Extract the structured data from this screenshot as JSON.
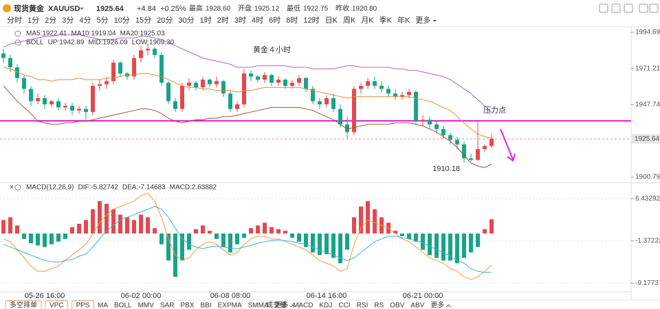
{
  "header": {
    "symbol": "现货黄金",
    "code": "XAUUSD",
    "price": "1925.64",
    "change": "+4.84",
    "change_pct": "+0.25%",
    "stats": [
      {
        "label": "最高",
        "value": "1928.60"
      },
      {
        "label": "开盘",
        "value": "1925.12"
      },
      {
        "label": "最低",
        "value": "1922.75"
      },
      {
        "label": "昨收",
        "value": "1920.80"
      }
    ]
  },
  "timeframes": [
    "分时",
    "1分",
    "2分",
    "3分",
    "4分",
    "5分",
    "10分",
    "15分",
    "20分",
    "30分",
    "1时",
    "2时",
    "3时",
    "4时",
    "6时",
    "8时",
    "12时",
    "日K",
    "周K",
    "月K",
    "季K",
    "年K",
    "更多"
  ],
  "bottom": {
    "tabs": [
      "多空排单",
      "VPC",
      "PPS"
    ],
    "main_indicators": [
      "MA",
      "BOLL",
      "MMV",
      "SAR",
      "PBX",
      "BBI",
      "EXPMA",
      "SMMA",
      "更多"
    ],
    "sub_indicators": [
      "成交量",
      "MACD",
      "KDJ",
      "CCI",
      "RSI",
      "RS",
      "OBV",
      "ABV",
      "更多"
    ]
  },
  "chart_data": [
    {
      "type": "candlestick",
      "title": "黄金４小时",
      "annotation": "压力点",
      "ma_legend": [
        {
          "text": "MA5:1922.41",
          "color": "#f08a24"
        },
        {
          "text": "MA10:1919.04",
          "color": "#2a8fd8"
        },
        {
          "text": "MA20:1925.03",
          "color": "#d0459b"
        }
      ],
      "indicator": "BOLL",
      "categories": [
        null,
        null,
        null,
        null,
        null,
        null,
        "05-26 16:00",
        null,
        null,
        null,
        null,
        null,
        null,
        null,
        null,
        null,
        null,
        null,
        null,
        null,
        "06-02 00:00",
        null,
        null,
        null,
        null,
        null,
        null,
        null,
        null,
        null,
        null,
        null,
        null,
        "06-08 08:00",
        null,
        null,
        null,
        null,
        null,
        null,
        null,
        null,
        null,
        null,
        null,
        null,
        null,
        "06-14 16:00",
        null,
        null,
        null,
        null,
        null,
        null,
        null,
        null,
        null,
        null,
        null,
        null,
        null,
        "06-21 00:00",
        null,
        null,
        null,
        null,
        null,
        null,
        null,
        null,
        null,
        null
      ],
      "open": [
        1981,
        1978,
        1972,
        1965,
        1958,
        1950,
        1952,
        1948,
        1950,
        1946,
        1947,
        1944,
        1945,
        1943,
        1960,
        1961,
        1963,
        1975,
        1968,
        1966,
        1978,
        1983,
        1984,
        1980,
        1962,
        1950,
        1945,
        1960,
        1962,
        1959,
        1964,
        1961,
        1963,
        1955,
        1945,
        1948,
        1968,
        1966,
        1964,
        1967,
        1962,
        1964,
        1960,
        1962,
        1965,
        1958,
        1950,
        1948,
        1952,
        1945,
        1935,
        1930,
        1958,
        1960,
        1963,
        1960,
        1958,
        1955,
        1953,
        1954,
        1956,
        1937,
        1938,
        1935,
        1932,
        1928,
        1925,
        1922,
        1913,
        1912,
        1919,
        1921
      ],
      "high": [
        1984,
        1980,
        1974,
        1967,
        1960,
        1955,
        1954,
        1951,
        1952,
        1949,
        1949,
        1947,
        1947,
        1962,
        1964,
        1966,
        1977,
        1976,
        1969,
        1980,
        1986,
        1987,
        1985,
        1982,
        1963,
        1952,
        1962,
        1965,
        1963,
        1966,
        1965,
        1966,
        1964,
        1957,
        1950,
        1971,
        1970,
        1967,
        1969,
        1968,
        1966,
        1965,
        1964,
        1967,
        1966,
        1960,
        1952,
        1954,
        1955,
        1948,
        1940,
        1960,
        1962,
        1965,
        1966,
        1963,
        1960,
        1958,
        1956,
        1958,
        1957,
        1941,
        1940,
        1937,
        1934,
        1930,
        1927,
        1924,
        1916,
        1938,
        1922,
        1928.6
      ],
      "low": [
        1975,
        1969,
        1962,
        1955,
        1947,
        1948,
        1945,
        1946,
        1944,
        1944,
        1941,
        1942,
        1938,
        1941,
        1957,
        1958,
        1961,
        1966,
        1964,
        1964,
        1975,
        1980,
        1978,
        1960,
        1948,
        1943,
        1943,
        1957,
        1957,
        1957,
        1959,
        1959,
        1953,
        1943,
        1943,
        1946,
        1963,
        1962,
        1962,
        1960,
        1960,
        1958,
        1958,
        1960,
        1956,
        1948,
        1945,
        1946,
        1943,
        1933,
        1926,
        1928,
        1955,
        1958,
        1958,
        1956,
        1953,
        1951,
        1951,
        1952,
        1935,
        1934,
        1932,
        1929,
        1926,
        1922,
        1919,
        1910.18,
        1911,
        1911,
        1917,
        1920
      ],
      "close": [
        1978,
        1972,
        1965,
        1958,
        1950,
        1952,
        1948,
        1950,
        1946,
        1947,
        1944,
        1945,
        1943,
        1960,
        1961,
        1963,
        1975,
        1968,
        1966,
        1978,
        1983,
        1984,
        1980,
        1962,
        1950,
        1945,
        1960,
        1962,
        1959,
        1964,
        1961,
        1963,
        1955,
        1945,
        1948,
        1968,
        1966,
        1964,
        1967,
        1962,
        1964,
        1960,
        1962,
        1965,
        1958,
        1950,
        1948,
        1952,
        1945,
        1935,
        1930,
        1958,
        1960,
        1963,
        1960,
        1958,
        1955,
        1953,
        1954,
        1956,
        1937,
        1938,
        1935,
        1932,
        1928,
        1925,
        1922,
        1913,
        1912,
        1919,
        1921,
        1925.64
      ],
      "up_color": "#e5474f",
      "down_color": "#17a488",
      "series": [
        {
          "name": "UP:1942.89",
          "color": "#b45fd0",
          "values": [
            1985,
            1987,
            1988,
            1989,
            1990,
            1991,
            1992,
            1992,
            1993,
            1993,
            1993,
            1993,
            1992,
            1991,
            1990,
            1990,
            1990,
            1991,
            1991,
            1991,
            1992,
            1992,
            1991,
            1990,
            1988,
            1986,
            1984,
            1982,
            1980,
            1978,
            1977,
            1976,
            1975,
            1974,
            1972,
            1972,
            1972,
            1973,
            1973,
            1973,
            1973,
            1973,
            1972,
            1972,
            1972,
            1971,
            1971,
            1971,
            1971,
            1972,
            1973,
            1973,
            1972,
            1972,
            1972,
            1972,
            1972,
            1971,
            1971,
            1970,
            1970,
            1969,
            1968,
            1967,
            1966,
            1964,
            1961,
            1958,
            1955,
            1951,
            1947,
            1942.89
          ]
        },
        {
          "name": "MID:1926.09",
          "color": "#e8893a",
          "values": [
            1972,
            1971,
            1969,
            1967,
            1966,
            1964,
            1964,
            1963,
            1964,
            1964,
            1964,
            1965,
            1964,
            1964,
            1964,
            1965,
            1965,
            1966,
            1967,
            1967,
            1968,
            1968,
            1967,
            1966,
            1964,
            1962,
            1960,
            1959,
            1959,
            1958,
            1958,
            1957,
            1957,
            1957,
            1956,
            1957,
            1957,
            1958,
            1959,
            1959,
            1959,
            1959,
            1959,
            1959,
            1958,
            1957,
            1956,
            1955,
            1954,
            1953,
            1952,
            1953,
            1953,
            1953,
            1953,
            1953,
            1953,
            1953,
            1953,
            1953,
            1952,
            1951,
            1950,
            1948,
            1946,
            1944,
            1940,
            1936,
            1932,
            1929,
            1927,
            1926.09
          ]
        },
        {
          "name": "LOW:1909.30",
          "color": "#a0522d",
          "values": [
            1960,
            1955,
            1950,
            1946,
            1942,
            1937,
            1936,
            1935,
            1935,
            1936,
            1936,
            1937,
            1937,
            1938,
            1939,
            1940,
            1941,
            1942,
            1943,
            1944,
            1945,
            1945,
            1944,
            1942,
            1939,
            1937,
            1936,
            1937,
            1938,
            1938,
            1939,
            1939,
            1940,
            1940,
            1941,
            1942,
            1943,
            1944,
            1945,
            1946,
            1946,
            1946,
            1946,
            1946,
            1945,
            1944,
            1942,
            1940,
            1938,
            1935,
            1932,
            1933,
            1934,
            1935,
            1935,
            1935,
            1935,
            1936,
            1936,
            1936,
            1935,
            1934,
            1932,
            1930,
            1927,
            1924,
            1920,
            1915,
            1910,
            1908,
            1907,
            1909.3
          ]
        }
      ],
      "resistance": 1937.3,
      "resistance_color": "#e020e0",
      "ylim": [
        1897.7,
        1997.8
      ],
      "yticks": [
        1994.69,
        1971.21,
        1947.74,
        1900.79
      ]
    },
    {
      "type": "macd",
      "title": "MACD(12,26,9)",
      "value_legend": "MACD:2.63882",
      "value_legend_color": "#d0459b",
      "values": [
        2.5,
        3,
        1.5,
        -1,
        -1.8,
        -2.2,
        -2.5,
        -2,
        -1.5,
        -1,
        1.2,
        1.8,
        2.5,
        4.5,
        6,
        5.5,
        4.5,
        3.5,
        3,
        2.5,
        3.5,
        3,
        1,
        -2,
        -5,
        -8,
        -5,
        -3,
        0.8,
        1.5,
        0.5,
        -1,
        -2.5,
        -3.5,
        -2,
        -0.8,
        1,
        1.5,
        2,
        1.2,
        0.8,
        0.5,
        -0.8,
        -1.5,
        -2.5,
        -3.5,
        -4,
        -3.8,
        -4.5,
        -5.5,
        -3,
        3,
        5,
        6,
        4.5,
        3,
        2,
        0.5,
        -0.5,
        -1,
        -1.5,
        -3,
        -4,
        -4.5,
        -5,
        -5,
        -5.5,
        -4.5,
        -3.5,
        -2.5,
        0.8,
        2.64
      ],
      "up_color": "#e5474f",
      "down_color": "#17a488",
      "series": [
        {
          "name": "DIF:-5.82742",
          "color": "#f39a3c",
          "values": [
            -1,
            -1.5,
            -3,
            -4.5,
            -6,
            -7,
            -7,
            -6.5,
            -6,
            -5,
            -4,
            -3,
            -2,
            0,
            2,
            3.5,
            4.5,
            5,
            5.5,
            6,
            7,
            7.5,
            6,
            3,
            -1,
            -4,
            -5,
            -4.5,
            -3,
            -2,
            -1.5,
            -2,
            -3,
            -4,
            -3.5,
            -2,
            -1,
            -0.5,
            -0.5,
            -1,
            -1,
            -1.5,
            -2,
            -2.5,
            -3,
            -4,
            -5,
            -5.5,
            -6,
            -7,
            -6.5,
            -2,
            1,
            2.5,
            2,
            1.5,
            1,
            0,
            -1,
            -1.5,
            -2.5,
            -3.5,
            -4.5,
            -5,
            -5.5,
            -6.5,
            -7,
            -8,
            -8.5,
            -8,
            -7,
            -5.83
          ]
        },
        {
          "name": "DEA:-7.14683",
          "color": "#3ab0e0",
          "values": [
            -2,
            -2.5,
            -3,
            -3.5,
            -4,
            -4.5,
            -5,
            -5.2,
            -5.3,
            -5,
            -4.8,
            -4.2,
            -3.8,
            -2.5,
            -1,
            0.5,
            1.5,
            2.5,
            3,
            3.5,
            4,
            4.5,
            5,
            4.5,
            3,
            1,
            -1,
            -2,
            -2.5,
            -2.8,
            -2.5,
            -2.3,
            -2.5,
            -2.7,
            -2.8,
            -2.5,
            -2.2,
            -1.8,
            -1.5,
            -1.3,
            -1.2,
            -1.3,
            -1.5,
            -1.8,
            -2,
            -2.5,
            -3,
            -3.5,
            -4,
            -4.5,
            -5,
            -4.5,
            -3.5,
            -2.5,
            -1.5,
            -1,
            -0.5,
            -0.5,
            -0.8,
            -1,
            -1.3,
            -1.7,
            -2.3,
            -3,
            -3.5,
            -4.2,
            -5,
            -5.5,
            -6.5,
            -7,
            -7.2,
            -7.15
          ]
        }
      ],
      "ylim": [
        -10.79,
        9.16
      ],
      "yticks": [
        6.43292,
        -1.37222,
        -9.17737
      ]
    }
  ]
}
